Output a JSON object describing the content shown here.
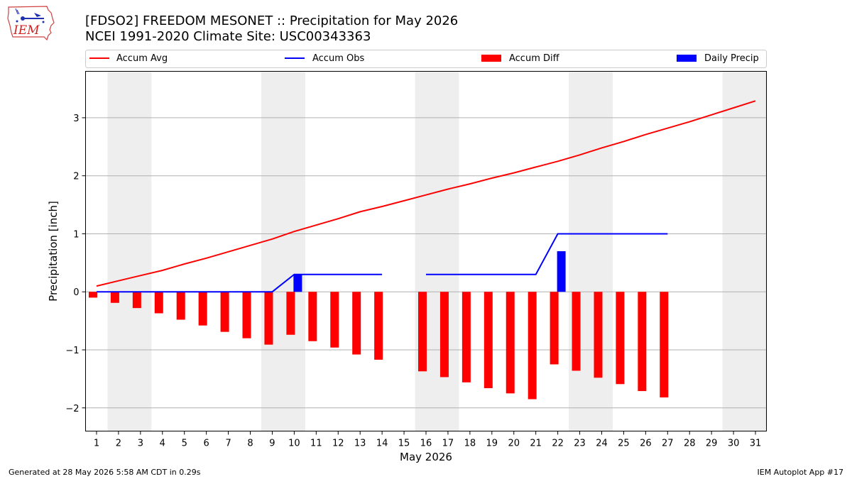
{
  "header": {
    "title_line1": "[FDSO2] FREEDOM MESONET :: Precipitation for May 2026",
    "title_line2": "NCEI 1991-2020 Climate Site: USC00343363",
    "logo_text": "IEM"
  },
  "footer": {
    "generated": "Generated at 28 May 2026 5:58 AM CDT in 0.29s",
    "app": "IEM Autoplot App #17"
  },
  "colors": {
    "accum_avg": "#ff0000",
    "accum_obs": "#0000ff",
    "accum_diff": "#ff0000",
    "daily_precip": "#0000ff",
    "weekend_shade": "#eeeeee",
    "grid": "#b0b0b0"
  },
  "chart_data": {
    "type": "bar",
    "title": "[FDSO2] FREEDOM MESONET :: Precipitation for May 2026",
    "subtitle": "NCEI 1991-2020 Climate Site: USC00343363",
    "xlabel": "May 2026",
    "ylabel": "Precipitation [inch]",
    "ylim": [
      -2.4,
      3.8
    ],
    "xlim": [
      0.5,
      31.5
    ],
    "yticks": [
      -2,
      -1,
      0,
      1,
      2,
      3
    ],
    "ytick_labels": [
      "−2",
      "−1",
      "0",
      "1",
      "2",
      "3"
    ],
    "x": [
      1,
      2,
      3,
      4,
      5,
      6,
      7,
      8,
      9,
      10,
      11,
      12,
      13,
      14,
      15,
      16,
      17,
      18,
      19,
      20,
      21,
      22,
      23,
      24,
      25,
      26,
      27,
      28,
      29,
      30,
      31
    ],
    "grid": "horizontal",
    "legend_position": "top",
    "weekend_shading": [
      [
        1.5,
        3.5
      ],
      [
        8.5,
        10.5
      ],
      [
        15.5,
        17.5
      ],
      [
        22.5,
        24.5
      ],
      [
        29.5,
        31.5
      ]
    ],
    "series": [
      {
        "name": "Accum Avg",
        "kind": "line",
        "values": [
          0.1,
          0.19,
          0.28,
          0.37,
          0.48,
          0.58,
          0.69,
          0.8,
          0.91,
          1.04,
          1.15,
          1.26,
          1.38,
          1.47,
          1.57,
          1.67,
          1.77,
          1.86,
          1.96,
          2.05,
          2.15,
          2.25,
          2.36,
          2.48,
          2.59,
          2.71,
          2.82,
          2.93,
          3.05,
          3.17,
          3.29
        ]
      },
      {
        "name": "Accum Obs",
        "kind": "line",
        "values": [
          0,
          0,
          0,
          0,
          0,
          0,
          0,
          0,
          0,
          0.3,
          0.3,
          0.3,
          0.3,
          0.3,
          null,
          0.3,
          0.3,
          0.3,
          0.3,
          0.3,
          0.3,
          1.0,
          1.0,
          1.0,
          1.0,
          1.0,
          1.0,
          null,
          null,
          null,
          null
        ]
      },
      {
        "name": "Accum Diff",
        "kind": "bar",
        "values": [
          -0.1,
          -0.19,
          -0.28,
          -0.37,
          -0.48,
          -0.58,
          -0.69,
          -0.8,
          -0.91,
          -0.74,
          -0.85,
          -0.96,
          -1.08,
          -1.17,
          null,
          -1.37,
          -1.47,
          -1.56,
          -1.66,
          -1.75,
          -1.85,
          -1.25,
          -1.36,
          -1.48,
          -1.59,
          -1.71,
          -1.82,
          null,
          null,
          null,
          null
        ]
      },
      {
        "name": "Daily Precip",
        "kind": "bar",
        "values": [
          null,
          null,
          null,
          null,
          null,
          null,
          null,
          null,
          null,
          0.3,
          null,
          null,
          null,
          null,
          null,
          null,
          null,
          null,
          null,
          null,
          null,
          0.7,
          null,
          null,
          null,
          null,
          null,
          null,
          null,
          null,
          null
        ]
      }
    ]
  }
}
